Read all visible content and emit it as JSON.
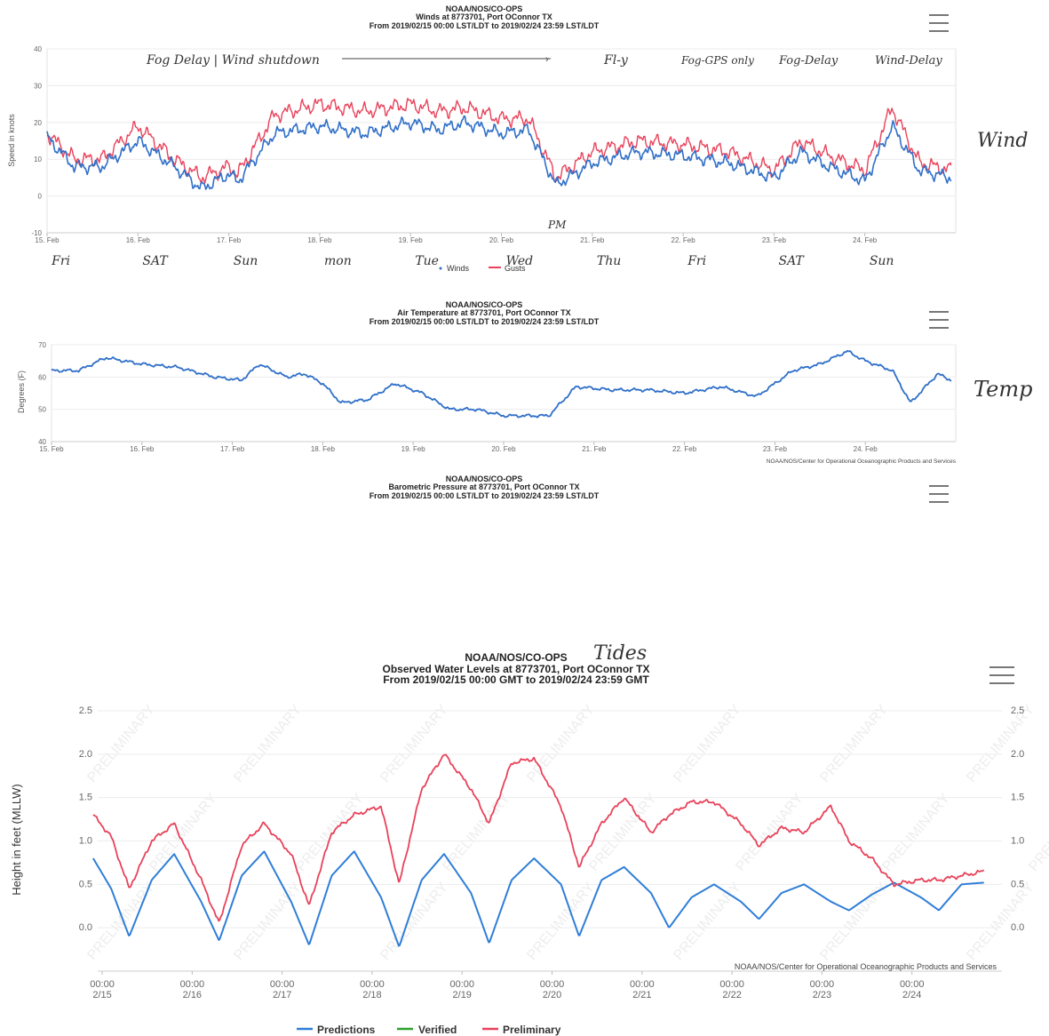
{
  "wind_chart": {
    "header": [
      "NOAA/NOS/CO-OPS",
      "Winds at 8773701, Port OConnor TX",
      "From 2019/02/15 00:00 LST/LDT to 2019/02/24 23:59 LST/LDT"
    ],
    "ylabel": "Speed in knots",
    "legend": [
      "Winds",
      "Gusts"
    ],
    "annotations": {
      "note1": "Fog Delay | Wind shutdown",
      "note2": "Fl-y",
      "note3": "Fog-GPS only",
      "note4": "Fog-Delay",
      "note5": "Wind-Delay",
      "side": "Wind",
      "pm": "PM",
      "days": [
        "Fri",
        "SAT",
        "Sun",
        "mon",
        "Tue",
        "Wed",
        "Thu",
        "Fri",
        "SAT",
        "Sun"
      ]
    }
  },
  "temp_chart": {
    "header": [
      "NOAA/NOS/CO-OPS",
      "Air Temperature at 8773701, Port OConnor TX",
      "From 2019/02/15 00:00 LST/LDT to 2019/02/24 23:59 LST/LDT"
    ],
    "ylabel": "Degrees (F)",
    "credit": "NOAA/NOS/Center for Operational Oceanographic Products and Services",
    "side": "Temp"
  },
  "pressure_chart": {
    "header": [
      "NOAA/NOS/CO-OPS",
      "Barometric Pressure at 8773701, Port OConnor TX",
      "From 2019/02/15 00:00 LST/LDT to 2019/02/24 23:59 LST/LDT"
    ]
  },
  "tide_chart": {
    "header": [
      "NOAA/NOS/CO-OPS",
      "Observed Water Levels at 8773701, Port OConnor TX",
      "From 2019/02/15 00:00 GMT to 2019/02/24 23:59 GMT"
    ],
    "annotation": "Tides",
    "ylabel": "Height in feet (MLLW)",
    "credit": "NOAA/NOS/Center for Operational Oceanographic Products and Services",
    "watermark": "PRELIMINARY",
    "legend": [
      "Predictions",
      "Verified",
      "Preliminary"
    ],
    "colors": {
      "predictions": "#2f7ed8",
      "verified": "#2ca02c",
      "preliminary": "#e8425a"
    }
  },
  "chart_data": [
    {
      "type": "line",
      "title": "Winds at 8773701, Port OConnor TX",
      "ylabel": "Speed in knots",
      "ylim": [
        -10,
        40
      ],
      "yticks": [
        -10,
        0,
        10,
        20,
        30,
        40
      ],
      "xticks": [
        "15. Feb",
        "16. Feb",
        "17. Feb",
        "18. Feb",
        "19. Feb",
        "20. Feb",
        "21. Feb",
        "22. Feb",
        "23. Feb",
        "24. Feb"
      ],
      "x": [
        0,
        0.3,
        0.6,
        1.0,
        1.4,
        1.7,
        2.0,
        2.1,
        2.5,
        3.0,
        3.5,
        4.0,
        4.3,
        4.6,
        5.0,
        5.3,
        5.6,
        6.0,
        6.5,
        7.0,
        7.5,
        8.0,
        8.3,
        8.6,
        9.0,
        9.3,
        9.6,
        9.95
      ],
      "series": [
        {
          "name": "Winds",
          "values": [
            16,
            8,
            8,
            15,
            8,
            2,
            6,
            4,
            17,
            19,
            17,
            20,
            18,
            20,
            17,
            18,
            3,
            9,
            12,
            11,
            9,
            5,
            12,
            8,
            4,
            19,
            7,
            5
          ]
        },
        {
          "name": "Gusts",
          "values": [
            17,
            10,
            10,
            19,
            10,
            5,
            8,
            6,
            22,
            25,
            23,
            25,
            23,
            24,
            21,
            21,
            5,
            12,
            15,
            14,
            12,
            7,
            15,
            11,
            7,
            24,
            9,
            7
          ]
        }
      ]
    },
    {
      "type": "line",
      "title": "Air Temperature at 8773701, Port OConnor TX",
      "ylabel": "Degrees (F)",
      "ylim": [
        40,
        70
      ],
      "yticks": [
        40,
        50,
        60,
        70
      ],
      "xticks": [
        "15. Feb",
        "16. Feb",
        "17. Feb",
        "18. Feb",
        "19. Feb",
        "20. Feb",
        "21. Feb",
        "22. Feb",
        "23. Feb",
        "24. Feb"
      ],
      "x": [
        0,
        0.3,
        0.6,
        1.0,
        1.4,
        1.8,
        2.1,
        2.3,
        2.6,
        2.8,
        3.0,
        3.2,
        3.5,
        3.8,
        4.1,
        4.4,
        4.7,
        5.0,
        5.2,
        5.5,
        5.8,
        6.2,
        6.6,
        7.0,
        7.4,
        7.8,
        8.0,
        8.2,
        8.5,
        8.8,
        9.0,
        9.3,
        9.5,
        9.8,
        9.95
      ],
      "series": [
        {
          "name": "Air Temperature",
          "values": [
            62,
            62,
            66,
            64,
            63,
            60,
            59,
            64,
            60,
            61,
            58,
            52,
            53,
            58,
            55,
            50,
            50,
            48,
            48,
            48,
            57,
            56,
            56,
            55,
            57,
            54,
            58,
            62,
            64,
            68,
            65,
            62,
            52,
            61,
            59
          ]
        }
      ]
    },
    {
      "type": "line",
      "title": "Observed Water Levels at 8773701, Port OConnor TX",
      "ylabel": "Height in feet (MLLW)",
      "ylim": [
        -0.5,
        2.5
      ],
      "yticks": [
        0.0,
        0.5,
        1.0,
        1.5,
        2.0,
        2.5
      ],
      "xticks": [
        "00:00 2/15",
        "00:00 2/16",
        "00:00 2/17",
        "00:00 2/18",
        "00:00 2/19",
        "00:00 2/20",
        "00:00 2/21",
        "00:00 2/22",
        "00:00 2/23",
        "00:00 2/24"
      ],
      "x": [
        -0.1,
        0.1,
        0.3,
        0.55,
        0.8,
        1.1,
        1.3,
        1.55,
        1.8,
        2.1,
        2.3,
        2.55,
        2.8,
        3.1,
        3.3,
        3.55,
        3.8,
        4.1,
        4.3,
        4.55,
        4.8,
        5.1,
        5.3,
        5.55,
        5.8,
        6.1,
        6.3,
        6.55,
        6.8,
        7.1,
        7.3,
        7.55,
        7.8,
        8.1,
        8.3,
        8.55,
        8.8,
        9.1,
        9.3,
        9.55,
        9.8
      ],
      "series": [
        {
          "name": "Predictions",
          "values": [
            0.8,
            0.45,
            -0.1,
            0.55,
            0.85,
            0.3,
            -0.15,
            0.6,
            0.88,
            0.3,
            -0.2,
            0.6,
            0.88,
            0.35,
            -0.22,
            0.55,
            0.85,
            0.4,
            -0.18,
            0.55,
            0.8,
            0.5,
            -0.1,
            0.55,
            0.7,
            0.4,
            0.0,
            0.35,
            0.5,
            0.3,
            0.1,
            0.4,
            0.5,
            0.3,
            0.2,
            0.38,
            0.52,
            0.35,
            0.2,
            0.5,
            0.52
          ]
        },
        {
          "name": "Preliminary",
          "values": [
            1.3,
            1.05,
            0.45,
            1.0,
            1.2,
            0.55,
            0.05,
            0.95,
            1.2,
            0.85,
            0.25,
            1.1,
            1.3,
            1.4,
            0.5,
            1.6,
            2.0,
            1.6,
            1.2,
            1.9,
            1.95,
            1.4,
            0.7,
            1.2,
            1.5,
            1.1,
            1.3,
            1.45,
            1.45,
            1.2,
            0.95,
            1.15,
            1.1,
            1.4,
            1.0,
            0.8,
            0.5,
            0.55,
            0.55,
            0.6,
            0.65
          ]
        }
      ]
    }
  ]
}
